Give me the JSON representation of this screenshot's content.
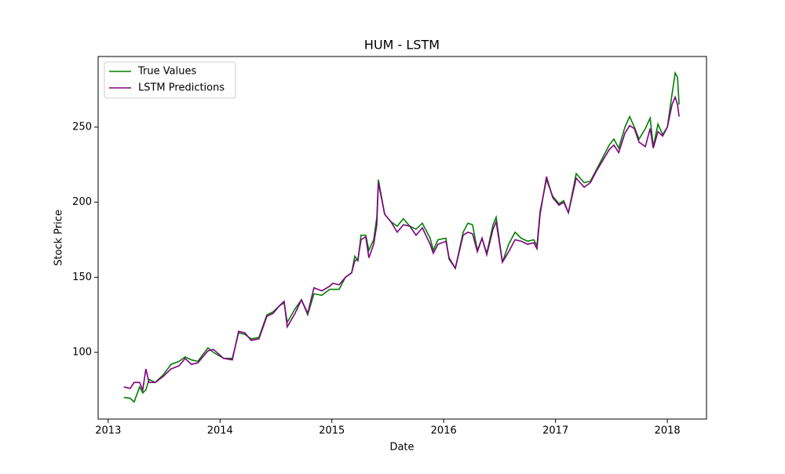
{
  "chart_data": {
    "type": "line",
    "title": "HUM - LSTM",
    "x_label": "Date",
    "y_label": "Stock Price",
    "x": [
      2013.14,
      2013.197,
      2013.232,
      2013.281,
      2013.309,
      2013.337,
      2013.365,
      2013.421,
      2013.492,
      2013.562,
      2013.632,
      2013.688,
      2013.744,
      2013.801,
      2013.892,
      2013.941,
      2014.032,
      2014.11,
      2014.166,
      2014.222,
      2014.278,
      2014.348,
      2014.419,
      2014.475,
      2014.531,
      2014.573,
      2014.601,
      2014.671,
      2014.728,
      2014.784,
      2014.84,
      2014.91,
      2014.98,
      2015.008,
      2015.065,
      2015.121,
      2015.177,
      2015.205,
      2015.233,
      2015.261,
      2015.303,
      2015.331,
      2015.374,
      2015.402,
      2015.416,
      2015.472,
      2015.528,
      2015.584,
      2015.64,
      2015.697,
      2015.753,
      2015.809,
      2015.879,
      2015.907,
      2015.949,
      2016.02,
      2016.048,
      2016.104,
      2016.174,
      2016.216,
      2016.258,
      2016.301,
      2016.343,
      2016.385,
      2016.441,
      2016.469,
      2016.525,
      2016.581,
      2016.638,
      2016.694,
      2016.75,
      2016.806,
      2016.834,
      2016.862,
      2016.919,
      2016.975,
      2017.031,
      2017.073,
      2017.115,
      2017.185,
      2017.256,
      2017.312,
      2017.368,
      2017.424,
      2017.48,
      2017.522,
      2017.565,
      2017.621,
      2017.663,
      2017.705,
      2017.747,
      2017.803,
      2017.846,
      2017.874,
      2017.916,
      2017.958,
      2018.0,
      2018.042,
      2018.07,
      2018.091,
      2018.105
    ],
    "series": [
      {
        "name": "True Values",
        "color": "#008000",
        "values": [
          70,
          69.5,
          67,
          77,
          73,
          75,
          82,
          80,
          85,
          92,
          94,
          97,
          95,
          94,
          103,
          100,
          96,
          96,
          113,
          112,
          109,
          110,
          125,
          127,
          131,
          133,
          120,
          129,
          135,
          125,
          139,
          138,
          142,
          142,
          142,
          150,
          153,
          164,
          161,
          178,
          178,
          168,
          175,
          190,
          215,
          192,
          187,
          184,
          189,
          184,
          182,
          186,
          176,
          168,
          175,
          176,
          162,
          156,
          180,
          186,
          185,
          168,
          176,
          166,
          185,
          190,
          160,
          172,
          180,
          176,
          174,
          175,
          171,
          194,
          215,
          204,
          199,
          201,
          193,
          219,
          213,
          214,
          222,
          230,
          238,
          242,
          236,
          250,
          257,
          250,
          242,
          249,
          256,
          237,
          252,
          245,
          250,
          272,
          286,
          283,
          265
        ]
      },
      {
        "name": "LSTM Predictions",
        "color": "#800080",
        "values": [
          77,
          76,
          80,
          80,
          75,
          89,
          80,
          80,
          84,
          89,
          91,
          96,
          92,
          93,
          101,
          102,
          96,
          95,
          114,
          113,
          108,
          109,
          124,
          126,
          131,
          134,
          117,
          126,
          135,
          126,
          143,
          141,
          144,
          146,
          145,
          150,
          153,
          161,
          162,
          175,
          177,
          163,
          172,
          185,
          213,
          192,
          187,
          180,
          185,
          184,
          178,
          183,
          172,
          166,
          172,
          174,
          163,
          156,
          178,
          180,
          179,
          167,
          176,
          165,
          182,
          187,
          160,
          167,
          175,
          174,
          172,
          173,
          169,
          192,
          217,
          203,
          198,
          200,
          193,
          216,
          210,
          213,
          221,
          228,
          235,
          238,
          233,
          246,
          251,
          249,
          240,
          237,
          249,
          236,
          247,
          244,
          250,
          265,
          270,
          265,
          257
        ]
      }
    ],
    "xlim": [
      2012.91,
      2018.35
    ],
    "xticks": [
      2013,
      2014,
      2015,
      2016,
      2017,
      2018
    ],
    "ylim": [
      55.6,
      297
    ],
    "yticks": [
      100,
      150,
      200,
      250
    ],
    "legend": "upper left"
  }
}
